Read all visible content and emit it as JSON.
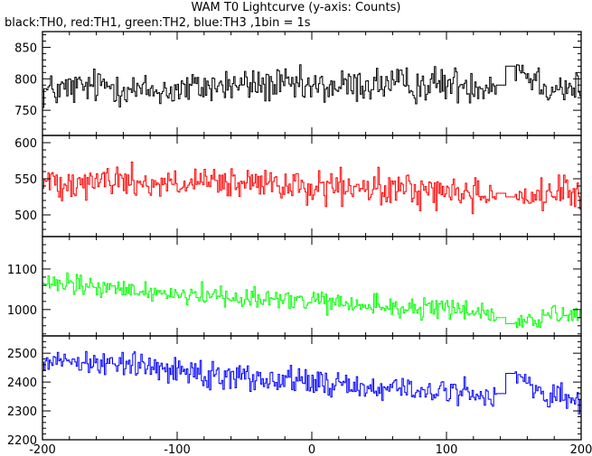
{
  "chart_data": {
    "type": "line",
    "title": "WAM T0 Lightcurve (y-axis: Counts)",
    "subtitle": "black:TH0, red:TH1, green:TH2, blue:TH3 ,1bin = 1s",
    "xlim": [
      -200,
      200
    ],
    "x_ticks": [
      -200,
      -100,
      0,
      100,
      200
    ],
    "x_tick_labels": [
      "-200",
      "-100",
      "0",
      "100",
      "200"
    ],
    "data_gap": [
      137,
      152
    ],
    "legend": "none",
    "grid": false,
    "series": [
      {
        "color": "#000000",
        "ylim": [
          710,
          875
        ],
        "y_ticks": [
          750,
          800,
          850
        ],
        "y_tick_labels": [
          "750",
          "800",
          "850"
        ],
        "x": [
          -198,
          -175,
          -150,
          -125,
          -100,
          -75,
          -50,
          -25,
          0,
          25,
          50,
          75,
          100,
          125,
          137,
          152,
          175,
          198
        ],
        "values": [
          780,
          785,
          790,
          780,
          782,
          788,
          790,
          790,
          785,
          788,
          792,
          790,
          792,
          790,
          790,
          820,
          788,
          785
        ],
        "noise": 32,
        "gap_levels": [
          790,
          820
        ]
      },
      {
        "color": "#ff0000",
        "ylim": [
          470,
          610
        ],
        "y_ticks": [
          500,
          550,
          600
        ],
        "y_tick_labels": [
          "500",
          "550",
          "600"
        ],
        "x": [
          -198,
          -175,
          -150,
          -125,
          -100,
          -75,
          -50,
          -25,
          0,
          25,
          50,
          75,
          100,
          125,
          137,
          152,
          175,
          198
        ],
        "values": [
          545,
          548,
          548,
          545,
          542,
          543,
          542,
          540,
          538,
          536,
          535,
          535,
          532,
          530,
          530,
          525,
          528,
          528
        ],
        "noise": 26,
        "gap_levels": [
          530,
          525
        ]
      },
      {
        "color": "#00ff00",
        "ylim": [
          935,
          1180
        ],
        "y_ticks": [
          1000,
          1100
        ],
        "y_tick_labels": [
          "1000",
          "1100"
        ],
        "x": [
          -198,
          -175,
          -150,
          -125,
          -100,
          -75,
          -50,
          -25,
          0,
          25,
          50,
          75,
          100,
          125,
          137,
          152,
          175,
          198
        ],
        "values": [
          1060,
          1060,
          1050,
          1045,
          1040,
          1035,
          1030,
          1025,
          1020,
          1012,
          1008,
          1003,
          1000,
          997,
          980,
          965,
          985,
          980
        ],
        "noise": 30,
        "gap_levels": [
          980,
          965
        ]
      },
      {
        "color": "#0000ff",
        "ylim": [
          2200,
          2560
        ],
        "y_ticks": [
          2200,
          2300,
          2400,
          2500
        ],
        "y_tick_labels": [
          "2200",
          "2300",
          "2400",
          "2500"
        ],
        "x": [
          -198,
          -175,
          -150,
          -125,
          -100,
          -75,
          -50,
          -25,
          0,
          25,
          50,
          75,
          100,
          125,
          137,
          152,
          175,
          198
        ],
        "values": [
          2480,
          2475,
          2465,
          2455,
          2445,
          2430,
          2420,
          2410,
          2400,
          2390,
          2380,
          2372,
          2365,
          2360,
          2360,
          2430,
          2345,
          2330
        ],
        "noise": 52,
        "gap_levels": [
          2360,
          2430
        ]
      }
    ]
  }
}
